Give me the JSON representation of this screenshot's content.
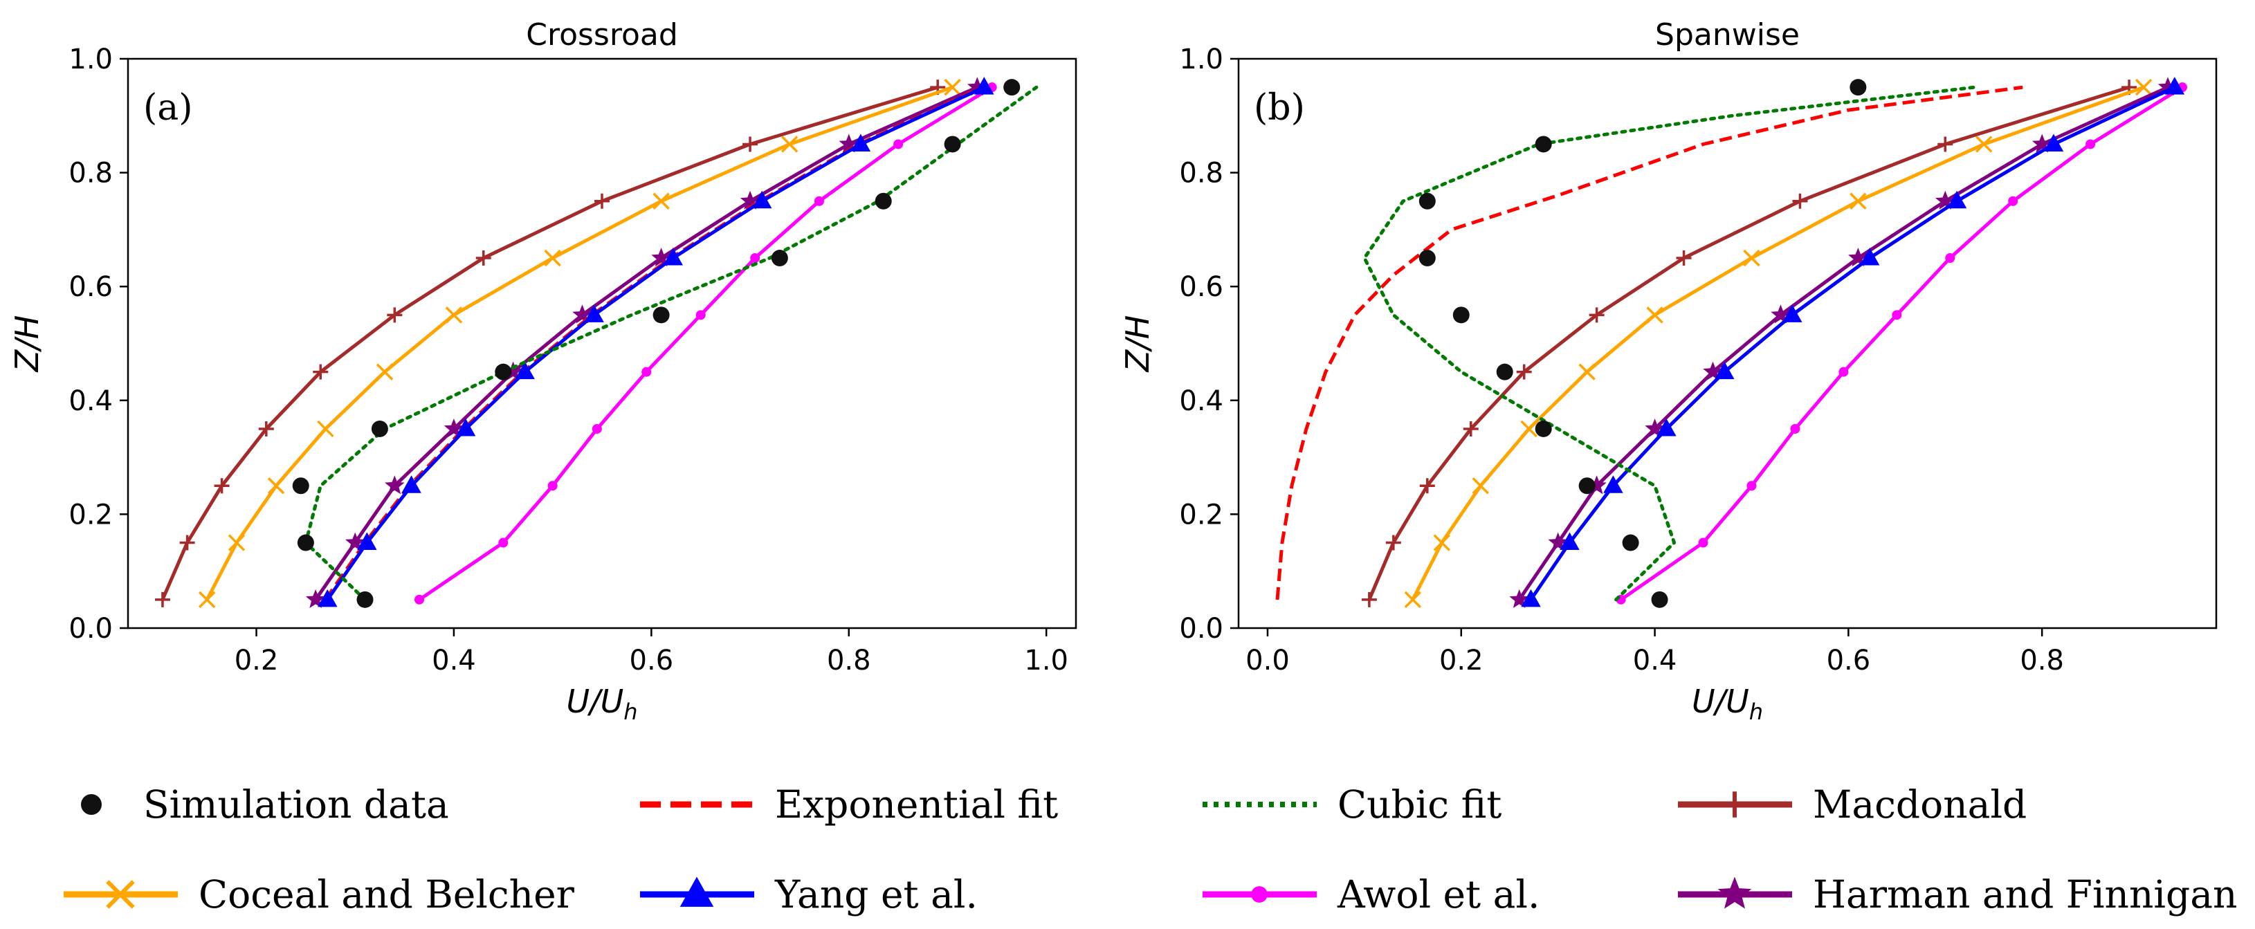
{
  "colors": {
    "simulation": "#111111",
    "exponential": "#ff0000",
    "cubic": "#007a00",
    "macdonald": "#a52a2a",
    "coceal": "#ffa500",
    "yang": "#0000ff",
    "awol": "#ff00ff",
    "harman": "#800080"
  },
  "legend": {
    "items": [
      {
        "key": "simulation",
        "label": "Simulation data",
        "marker": "circle",
        "line": "none"
      },
      {
        "key": "exponential",
        "label": "Exponential fit",
        "marker": "none",
        "line": "dashed"
      },
      {
        "key": "cubic",
        "label": "Cubic fit",
        "marker": "none",
        "line": "dotted"
      },
      {
        "key": "macdonald",
        "label": "Macdonald",
        "marker": "plus",
        "line": "solid"
      },
      {
        "key": "coceal",
        "label": "Coceal and Belcher",
        "marker": "x",
        "line": "solid"
      },
      {
        "key": "yang",
        "label": "Yang et al.",
        "marker": "triangle",
        "line": "solid"
      },
      {
        "key": "awol",
        "label": "Awol et al.",
        "marker": "dot",
        "line": "solid"
      },
      {
        "key": "harman",
        "label": "Harman and Finnigan",
        "marker": "star",
        "line": "solid"
      }
    ]
  },
  "chart_data": [
    {
      "type": "line",
      "title": "Crossroad",
      "panel_label": "(a)",
      "xlabel": "U/U",
      "xlabel_sub": "h",
      "ylabel": "Z/H",
      "xlim": [
        0.07,
        1.03
      ],
      "ylim": [
        0.0,
        1.0
      ],
      "xticks": [
        0.2,
        0.4,
        0.6,
        0.8,
        1.0
      ],
      "xtick_labels": [
        "0.2",
        "0.4",
        "0.6",
        "0.8",
        "1.0"
      ],
      "yticks": [
        0.0,
        0.2,
        0.4,
        0.6,
        0.8,
        1.0
      ],
      "ytick_labels": [
        "0.0",
        "0.2",
        "0.4",
        "0.6",
        "0.8",
        "1.0"
      ],
      "grid": false,
      "series": [
        {
          "key": "macdonald",
          "x": [
            0.105,
            0.13,
            0.165,
            0.21,
            0.265,
            0.34,
            0.43,
            0.55,
            0.7,
            0.89
          ],
          "y": [
            0.05,
            0.15,
            0.25,
            0.35,
            0.45,
            0.55,
            0.65,
            0.75,
            0.85,
            0.95
          ]
        },
        {
          "key": "coceal",
          "x": [
            0.15,
            0.18,
            0.22,
            0.27,
            0.33,
            0.4,
            0.5,
            0.61,
            0.74,
            0.905
          ],
          "y": [
            0.05,
            0.15,
            0.25,
            0.35,
            0.45,
            0.55,
            0.65,
            0.75,
            0.85,
            0.95
          ]
        },
        {
          "key": "awol",
          "x": [
            0.365,
            0.45,
            0.5,
            0.545,
            0.595,
            0.65,
            0.705,
            0.77,
            0.85,
            0.945
          ],
          "y": [
            0.05,
            0.15,
            0.25,
            0.35,
            0.45,
            0.55,
            0.65,
            0.75,
            0.85,
            0.95
          ]
        },
        {
          "key": "harman",
          "x": [
            0.26,
            0.3,
            0.34,
            0.4,
            0.46,
            0.53,
            0.61,
            0.7,
            0.8,
            0.93
          ],
          "y": [
            0.05,
            0.15,
            0.25,
            0.35,
            0.45,
            0.55,
            0.65,
            0.75,
            0.85,
            0.95
          ]
        },
        {
          "key": "exponential",
          "x": [
            0.27,
            0.31,
            0.355,
            0.41,
            0.47,
            0.54,
            0.62,
            0.71,
            0.81,
            0.935
          ],
          "y": [
            0.05,
            0.15,
            0.25,
            0.35,
            0.45,
            0.55,
            0.65,
            0.75,
            0.85,
            0.95
          ]
        },
        {
          "key": "yang",
          "x": [
            0.272,
            0.312,
            0.357,
            0.412,
            0.472,
            0.542,
            0.622,
            0.712,
            0.812,
            0.937
          ],
          "y": [
            0.05,
            0.15,
            0.25,
            0.35,
            0.45,
            0.55,
            0.65,
            0.75,
            0.85,
            0.95
          ]
        },
        {
          "key": "cubic",
          "x": [
            0.31,
            0.25,
            0.265,
            0.33,
            0.45,
            0.58,
            0.72,
            0.83,
            0.91,
            0.99
          ],
          "y": [
            0.05,
            0.15,
            0.25,
            0.35,
            0.45,
            0.55,
            0.65,
            0.75,
            0.85,
            0.95
          ]
        },
        {
          "key": "simulation",
          "x": [
            0.31,
            0.25,
            0.245,
            0.325,
            0.45,
            0.61,
            0.73,
            0.835,
            0.905,
            0.965
          ],
          "y": [
            0.05,
            0.15,
            0.25,
            0.35,
            0.45,
            0.55,
            0.65,
            0.75,
            0.85,
            0.95
          ]
        }
      ]
    },
    {
      "type": "line",
      "title": "Spanwise",
      "panel_label": "(b)",
      "xlabel": "U/U",
      "xlabel_sub": "h",
      "ylabel": "Z/H",
      "xlim": [
        -0.03,
        0.98
      ],
      "ylim": [
        0.0,
        1.0
      ],
      "xticks": [
        0.0,
        0.2,
        0.4,
        0.6,
        0.8
      ],
      "xtick_labels": [
        "0.0",
        "0.2",
        "0.4",
        "0.6",
        "0.8"
      ],
      "yticks": [
        0.0,
        0.2,
        0.4,
        0.6,
        0.8,
        1.0
      ],
      "ytick_labels": [
        "0.0",
        "0.2",
        "0.4",
        "0.6",
        "0.8",
        "1.0"
      ],
      "grid": false,
      "series": [
        {
          "key": "macdonald",
          "x": [
            0.105,
            0.13,
            0.165,
            0.21,
            0.265,
            0.34,
            0.43,
            0.55,
            0.7,
            0.89
          ],
          "y": [
            0.05,
            0.15,
            0.25,
            0.35,
            0.45,
            0.55,
            0.65,
            0.75,
            0.85,
            0.95
          ]
        },
        {
          "key": "coceal",
          "x": [
            0.15,
            0.18,
            0.22,
            0.27,
            0.33,
            0.4,
            0.5,
            0.61,
            0.74,
            0.905
          ],
          "y": [
            0.05,
            0.15,
            0.25,
            0.35,
            0.45,
            0.55,
            0.65,
            0.75,
            0.85,
            0.95
          ]
        },
        {
          "key": "awol",
          "x": [
            0.365,
            0.45,
            0.5,
            0.545,
            0.595,
            0.65,
            0.705,
            0.77,
            0.85,
            0.945
          ],
          "y": [
            0.05,
            0.15,
            0.25,
            0.35,
            0.45,
            0.55,
            0.65,
            0.75,
            0.85,
            0.95
          ]
        },
        {
          "key": "harman",
          "x": [
            0.26,
            0.3,
            0.34,
            0.4,
            0.46,
            0.53,
            0.61,
            0.7,
            0.8,
            0.93
          ],
          "y": [
            0.05,
            0.15,
            0.25,
            0.35,
            0.45,
            0.55,
            0.65,
            0.75,
            0.85,
            0.95
          ]
        },
        {
          "key": "yang",
          "x": [
            0.272,
            0.312,
            0.357,
            0.412,
            0.472,
            0.542,
            0.622,
            0.712,
            0.812,
            0.937
          ],
          "y": [
            0.05,
            0.15,
            0.25,
            0.35,
            0.45,
            0.55,
            0.65,
            0.75,
            0.85,
            0.95
          ]
        },
        {
          "key": "exponential",
          "x": [
            0.01,
            0.015,
            0.025,
            0.04,
            0.06,
            0.09,
            0.13,
            0.19,
            0.3,
            0.45,
            0.6,
            0.78
          ],
          "y": [
            0.05,
            0.15,
            0.25,
            0.35,
            0.45,
            0.55,
            0.62,
            0.7,
            0.76,
            0.85,
            0.91,
            0.95
          ]
        },
        {
          "key": "cubic",
          "x": [
            0.36,
            0.42,
            0.4,
            0.3,
            0.2,
            0.13,
            0.1,
            0.14,
            0.28,
            0.48,
            0.73
          ],
          "y": [
            0.05,
            0.15,
            0.25,
            0.35,
            0.45,
            0.55,
            0.65,
            0.75,
            0.85,
            0.9,
            0.95
          ]
        },
        {
          "key": "simulation",
          "x": [
            0.405,
            0.375,
            0.33,
            0.285,
            0.245,
            0.2,
            0.165,
            0.165,
            0.285,
            0.61
          ],
          "y": [
            0.05,
            0.15,
            0.25,
            0.35,
            0.45,
            0.55,
            0.65,
            0.75,
            0.85,
            0.95
          ]
        }
      ]
    }
  ]
}
